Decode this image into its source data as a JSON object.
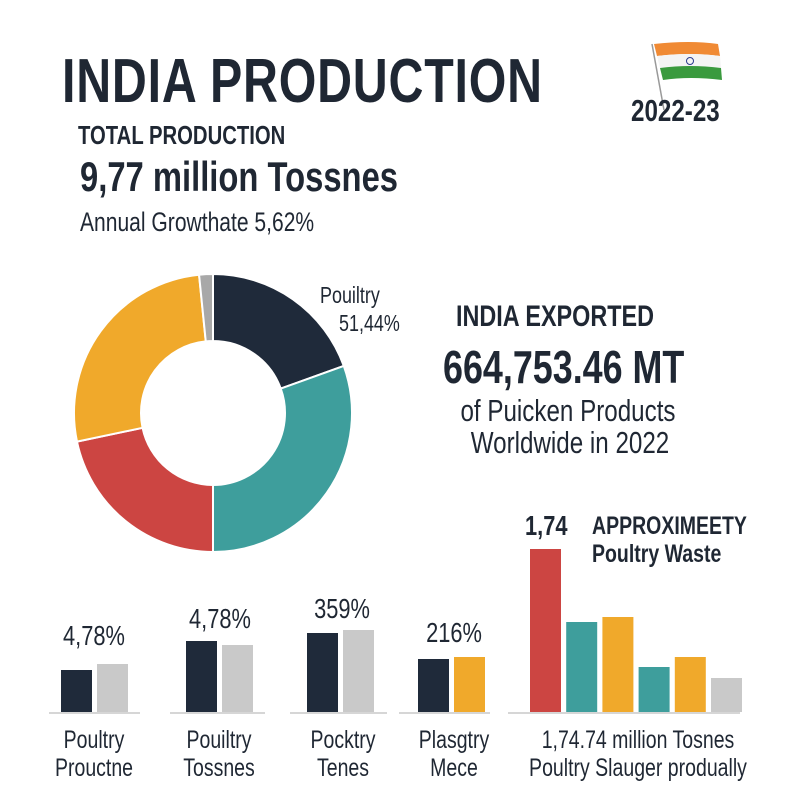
{
  "header": {
    "title": "INDIA PRODUCTION",
    "year": "2022-23",
    "flag_icon": "india-flag-icon",
    "total_label": "TOTAL PRODUCTION",
    "total_value": "9,77 million Tossnes",
    "growth": "Annual Growthate 5,62%"
  },
  "export": {
    "heading": "INDIA EXPORTED",
    "value": "664,753.46 MT",
    "line1": "of Puicken Products",
    "line2": "Worldwide in 2022"
  },
  "colors": {
    "navy": "#1f2a3a",
    "teal": "#3e9e9c",
    "red": "#cc4542",
    "yellow": "#f0a92b",
    "gray": "#c9c9c9",
    "darkgray": "#a8a8a8"
  },
  "chart_data": [
    {
      "type": "pie",
      "style": "donut",
      "slices": [
        {
          "color": "#1f2a3a",
          "value": 19.5
        },
        {
          "color": "#3e9e9c",
          "value": 30.5
        },
        {
          "color": "#cc4542",
          "value": 21.7
        },
        {
          "color": "#f0a92b",
          "value": 26.7
        },
        {
          "color": "#a8a8a8",
          "value": 1.6
        }
      ],
      "annotation": {
        "label": "Pouiltry",
        "value": "51,44%"
      }
    },
    {
      "type": "bar",
      "groups": [
        {
          "value_label": "4,78%",
          "label": [
            "Poultry",
            "Prouctne"
          ],
          "bars": [
            {
              "color": "#1f2a3a",
              "value": 42
            },
            {
              "color": "#c9c9c9",
              "value": 48
            }
          ]
        },
        {
          "value_label": "4,78%",
          "label": [
            "Pouiltry",
            "Tossnes"
          ],
          "bars": [
            {
              "color": "#1f2a3a",
              "value": 71
            },
            {
              "color": "#c9c9c9",
              "value": 67
            }
          ]
        },
        {
          "value_label": "359%",
          "label": [
            "Pocktry",
            "Tenes"
          ],
          "bars": [
            {
              "color": "#1f2a3a",
              "value": 79
            },
            {
              "color": "#c9c9c9",
              "value": 82
            }
          ]
        },
        {
          "value_label": "216%",
          "label": [
            "Plasgtry",
            "Mece"
          ],
          "bars": [
            {
              "color": "#1f2a3a",
              "value": 53
            },
            {
              "color": "#f0a92b",
              "value": 55
            }
          ]
        }
      ]
    },
    {
      "type": "bar",
      "value_label": "1,74",
      "title": [
        "APPROXIMEETY",
        "Poultry Waste"
      ],
      "label": [
        "1,74.74 million Tosnes",
        "Poultry Slauger produally"
      ],
      "bars": [
        {
          "color": "#cc4542",
          "value": 163
        },
        {
          "color": "#3e9e9c",
          "value": 90
        },
        {
          "color": "#f0a92b",
          "value": 95
        },
        {
          "color": "#3e9e9c",
          "value": 45
        },
        {
          "color": "#f0a92b",
          "value": 55
        },
        {
          "color": "#c9c9c9",
          "value": 34
        }
      ]
    }
  ]
}
